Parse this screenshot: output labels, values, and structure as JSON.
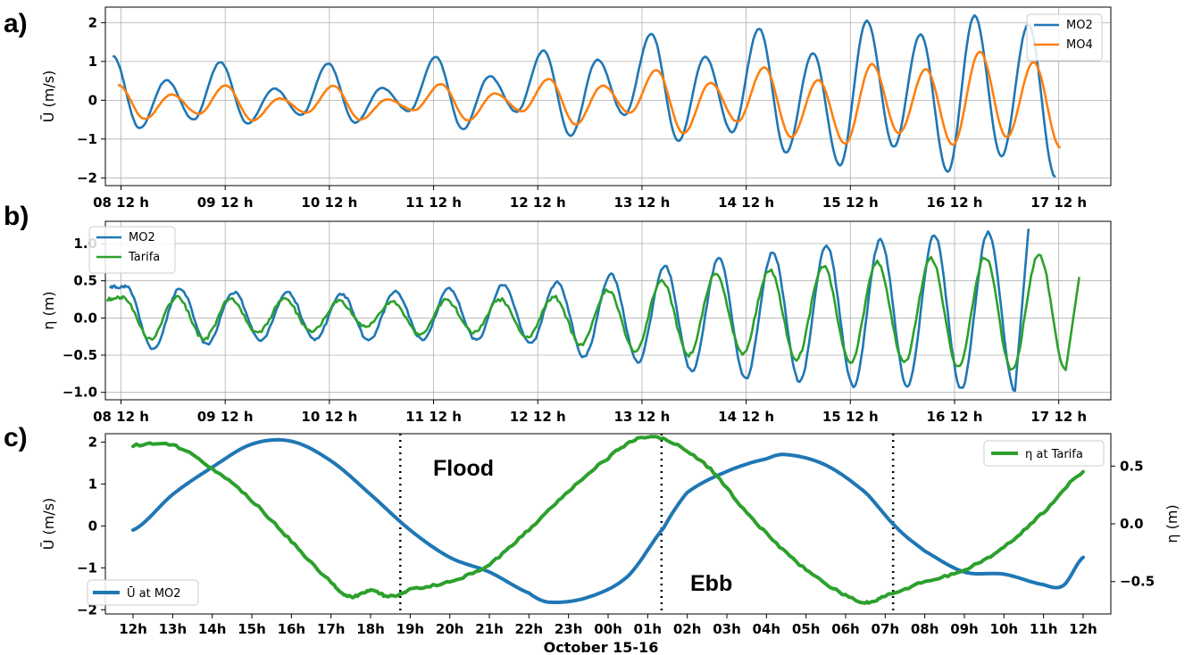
{
  "chart_data": [
    {
      "panel_label": "a)",
      "type": "line",
      "ylabel": "Ū (m/s)",
      "ylim": [
        -2.2,
        2.4
      ],
      "yticks": [
        -2,
        -1,
        0,
        1,
        2
      ],
      "xticks": [
        "08 12 h",
        "09 12 h",
        "10 12 h",
        "11 12 h",
        "12 12 h",
        "13 12 h",
        "14 12 h",
        "15 12 h",
        "16 12 h",
        "17 12 h"
      ],
      "x_range_days": [
        8.35,
        18.0
      ],
      "grid": true,
      "legend": "top-right",
      "series": [
        {
          "name": "MO2",
          "color": "#1f77b4",
          "peaks": [
            1.15,
            0.52,
            0.98,
            0.3,
            0.95,
            0.32,
            1.12,
            0.62,
            1.28,
            1.05,
            1.72,
            1.12,
            1.85,
            1.22,
            2.05,
            1.7,
            2.18,
            1.95
          ],
          "troughs": [
            -0.72,
            -0.5,
            -0.6,
            -0.38,
            -0.58,
            -0.28,
            -0.75,
            -0.3,
            -0.92,
            -0.38,
            -1.05,
            -0.82,
            -1.35,
            -1.68,
            -1.2,
            -1.85,
            -1.45,
            -1.98,
            -1.8
          ]
        },
        {
          "name": "MO4",
          "color": "#ff7f0e",
          "peaks": [
            0.4,
            0.15,
            0.38,
            0.05,
            0.37,
            0.02,
            0.42,
            0.18,
            0.55,
            0.38,
            0.78,
            0.45,
            0.85,
            0.52,
            0.93,
            0.8,
            1.25,
            0.98
          ],
          "troughs": [
            -0.48,
            -0.35,
            -0.52,
            -0.32,
            -0.5,
            -0.25,
            -0.52,
            -0.28,
            -0.62,
            -0.32,
            -0.85,
            -0.55,
            -0.95,
            -1.12,
            -0.85,
            -1.15,
            -0.95,
            -1.22,
            -1.1
          ]
        }
      ]
    },
    {
      "panel_label": "b)",
      "type": "line",
      "ylabel": "η (m)",
      "ylim": [
        -1.1,
        1.3
      ],
      "yticks": [
        -1.0,
        -0.5,
        0.0,
        0.5,
        1.0
      ],
      "ytick_labels": [
        "−1.0",
        "−0.5",
        "0.0",
        "0.5",
        "1.0"
      ],
      "xticks": [
        "08 12 h",
        "09 12 h",
        "10 12 h",
        "11 12 h",
        "12 12 h",
        "13 12 h",
        "14 12 h",
        "15 12 h",
        "16 12 h",
        "17 12 h"
      ],
      "x_range_days": [
        8.35,
        18.0
      ],
      "grid": true,
      "legend": "top-left",
      "series": [
        {
          "name": "MO2",
          "color": "#1f77b4",
          "start": 0.42,
          "end": 1.2,
          "peaks": [
            0.42,
            0.4,
            0.35,
            0.35,
            0.32,
            0.35,
            0.4,
            0.45,
            0.48,
            0.58,
            0.7,
            0.8,
            0.88,
            0.98,
            1.05,
            1.12,
            1.15
          ],
          "troughs": [
            -0.42,
            -0.35,
            -0.3,
            -0.3,
            -0.3,
            -0.3,
            -0.3,
            -0.35,
            -0.52,
            -0.6,
            -0.72,
            -0.82,
            -0.85,
            -0.92,
            -0.92,
            -0.95,
            -0.98,
            -0.95
          ]
        },
        {
          "name": "Tarifa",
          "color": "#2ca02c",
          "start": 0.25,
          "end": 0.55,
          "peaks": [
            0.28,
            0.28,
            0.26,
            0.25,
            0.22,
            0.22,
            0.24,
            0.25,
            0.28,
            0.38,
            0.5,
            0.6,
            0.65,
            0.7,
            0.75,
            0.8,
            0.82,
            0.85
          ],
          "troughs": [
            -0.28,
            -0.28,
            -0.2,
            -0.18,
            -0.12,
            -0.22,
            -0.2,
            -0.25,
            -0.35,
            -0.45,
            -0.5,
            -0.48,
            -0.55,
            -0.6,
            -0.6,
            -0.65,
            -0.7,
            -0.7
          ]
        }
      ]
    },
    {
      "panel_label": "c)",
      "type": "line",
      "xlabel": "October 15-16",
      "ylabel_left": "Ū (m/s)",
      "ylabel_right": "η  (m)",
      "ylim_left": [
        -2.1,
        2.2
      ],
      "yticks_left": [
        -2,
        -1,
        0,
        1,
        2
      ],
      "ylim_right": [
        -0.78,
        0.78
      ],
      "yticks_right": [
        -0.5,
        0.0,
        0.5
      ],
      "ytick_labels_right": [
        "−0.5",
        "0.0",
        "0.5"
      ],
      "xticks": [
        "12h",
        "13h",
        "14h",
        "15h",
        "16h",
        "17h",
        "18h",
        "19h",
        "20h",
        "21h",
        "22h",
        "23h",
        "00h",
        "01h",
        "02h",
        "03h",
        "04h",
        "05h",
        "06h",
        "07h",
        "08h",
        "09h",
        "10h",
        "11h",
        "12h"
      ],
      "vlines_hours": [
        18.75,
        25.35,
        31.2
      ],
      "annotations": [
        "Flood",
        "Ebb"
      ],
      "series": [
        {
          "name": "Ū at MO2",
          "color": "#1f77b4",
          "axis": "left",
          "points": [
            [
              12,
              -0.1
            ],
            [
              13,
              0.75
            ],
            [
              14,
              1.4
            ],
            [
              15,
              1.95
            ],
            [
              16,
              2.02
            ],
            [
              17,
              1.55
            ],
            [
              18,
              0.75
            ],
            [
              19,
              -0.1
            ],
            [
              20,
              -0.75
            ],
            [
              21,
              -1.1
            ],
            [
              22,
              -1.6
            ],
            [
              22.5,
              -1.82
            ],
            [
              23.5,
              -1.7
            ],
            [
              24.5,
              -1.2
            ],
            [
              25.4,
              -0.05
            ],
            [
              26,
              0.8
            ],
            [
              27,
              1.3
            ],
            [
              28,
              1.6
            ],
            [
              28.5,
              1.7
            ],
            [
              29.5,
              1.45
            ],
            [
              30.5,
              0.8
            ],
            [
              31.3,
              -0.05
            ],
            [
              32,
              -0.6
            ],
            [
              33,
              -1.1
            ],
            [
              34,
              -1.15
            ],
            [
              35,
              -1.4
            ],
            [
              35.5,
              -1.42
            ],
            [
              36,
              -0.75
            ]
          ]
        },
        {
          "name": "η at Tarifa",
          "color": "#2ca02c",
          "axis": "right",
          "points": [
            [
              12,
              0.68
            ],
            [
              13,
              0.68
            ],
            [
              14,
              0.48
            ],
            [
              15,
              0.2
            ],
            [
              16,
              -0.15
            ],
            [
              17,
              -0.5
            ],
            [
              17.5,
              -0.63
            ],
            [
              18,
              -0.58
            ],
            [
              18.5,
              -0.63
            ],
            [
              19,
              -0.57
            ],
            [
              20,
              -0.5
            ],
            [
              21,
              -0.35
            ],
            [
              22,
              -0.05
            ],
            [
              23,
              0.28
            ],
            [
              24,
              0.57
            ],
            [
              24.8,
              0.74
            ],
            [
              25.5,
              0.72
            ],
            [
              26.5,
              0.5
            ],
            [
              27.5,
              0.1
            ],
            [
              28.5,
              -0.25
            ],
            [
              29.5,
              -0.52
            ],
            [
              30.5,
              -0.68
            ],
            [
              31,
              -0.62
            ],
            [
              32,
              -0.5
            ],
            [
              33,
              -0.4
            ],
            [
              34,
              -0.2
            ],
            [
              35,
              0.1
            ],
            [
              36,
              0.45
            ]
          ]
        }
      ]
    }
  ]
}
